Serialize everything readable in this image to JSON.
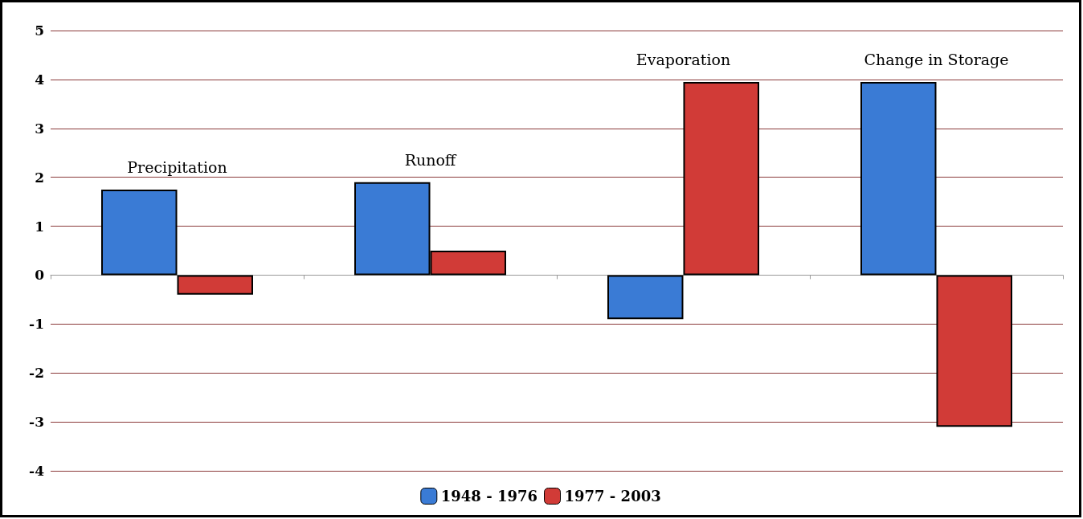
{
  "chart_data": {
    "type": "bar",
    "categories": [
      "Precipitation",
      "Runoff",
      "Evaporation",
      "Change in Storage"
    ],
    "series": [
      {
        "name": "1948 - 1976",
        "color": "#3a7bd5",
        "values": [
          1.75,
          1.9,
          -0.9,
          3.95
        ]
      },
      {
        "name": "1977 - 2003",
        "color": "#d13b37",
        "values": [
          -0.4,
          0.5,
          3.95,
          -3.1
        ]
      }
    ],
    "ylim": [
      -4,
      5
    ],
    "yticks": [
      -4,
      -3,
      -2,
      -1,
      0,
      1,
      2,
      3,
      4,
      5
    ],
    "grid": "y",
    "legend": "bottom",
    "tick_labels": "y"
  }
}
